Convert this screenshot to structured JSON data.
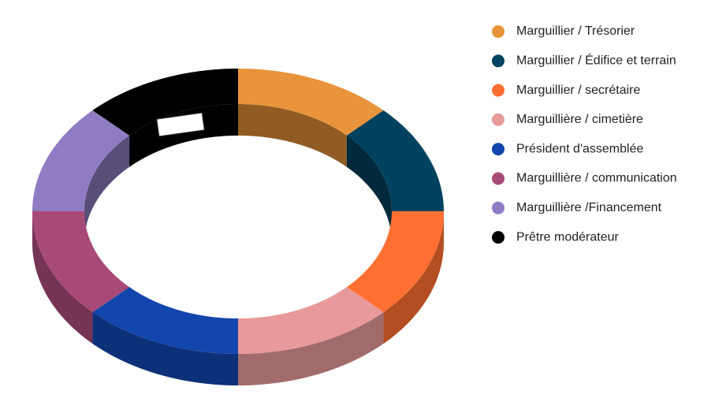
{
  "chart_data": {
    "type": "donut",
    "three_d": true,
    "legend": "right",
    "categories": [
      "Marguillier / Trésorier",
      "Marguillier / Édifice et terrain",
      "Marguillier / secrétaire",
      "Marguillière / cimetière",
      "Président d'assemblée",
      "Marguillière / communication",
      "Marguillière /Financement",
      "Prêtre modérateur"
    ],
    "values": [
      12.5,
      12.5,
      12.5,
      12.5,
      12.5,
      12.5,
      12.5,
      12.5
    ],
    "colors": [
      "#e8943a",
      "#00425f",
      "#ff6f31",
      "#e89999",
      "#1346ac",
      "#a84a78",
      "#8f7cc3",
      "#000000"
    ]
  }
}
